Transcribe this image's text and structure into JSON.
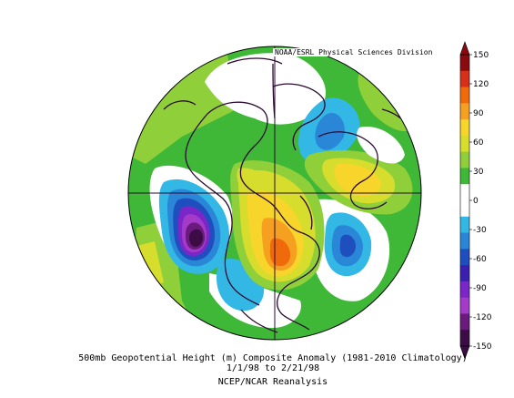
{
  "map": {
    "credit": "NOAA/ESRL Physical Sciences Division",
    "caption_line1": "500mb Geopotential Height (m) Composite Anomaly (1981-2010 Climatology)",
    "caption_line2": "1/1/98  to 2/21/98",
    "caption_line3": "NCEP/NCAR Reanalysis",
    "projection": "north-polar-stereographic"
  },
  "colorbar": {
    "ticks": [
      "150",
      "120",
      "90",
      "60",
      "30",
      "0",
      "-30",
      "-60",
      "-90",
      "-120",
      "-150"
    ],
    "colors": [
      "#8b0a10",
      "#d7301a",
      "#f06a0c",
      "#f5a020",
      "#f7d52a",
      "#d6dd2c",
      "#8fcf3a",
      "#3fb838",
      "#ffffff",
      "#ffffff",
      "#33b8e6",
      "#2a86d6",
      "#1f4fbe",
      "#3a1fb0",
      "#7a26c8",
      "#a43ac8",
      "#6b1a7e",
      "#3c0c46"
    ]
  }
}
